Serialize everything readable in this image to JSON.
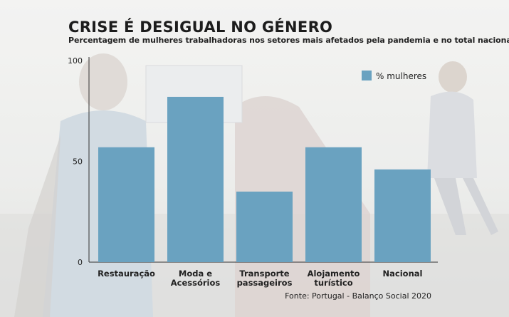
{
  "header": {
    "title": "CRISE É DESIGUAL NO GÉNERO",
    "subtitle": "Percentagem de mulheres trabalhadoras nos setores mais afetados pela pandemia e no total nacional"
  },
  "footer": {
    "source": "Fonte: Portugal - Balanço Social 2020"
  },
  "chart_data": {
    "type": "bar",
    "categories": [
      "Restauração",
      "Moda e Acessórios",
      "Transporte passageiros",
      "Alojamento turístico",
      "Nacional"
    ],
    "category_lines": [
      [
        "Restauração"
      ],
      [
        "Moda e",
        "Acessórios"
      ],
      [
        "Transporte",
        "passageiros"
      ],
      [
        "Alojamento",
        "turístico"
      ],
      [
        "Nacional"
      ]
    ],
    "series": [
      {
        "name": "% mulheres",
        "values": [
          57,
          82,
          35,
          57,
          46
        ]
      }
    ],
    "ylim": [
      0,
      100
    ],
    "yticks": [
      0,
      50,
      100
    ],
    "grid": false,
    "legend_position": "top-right",
    "bar_color": "#6aa2c0",
    "axis_color": "#333333"
  }
}
